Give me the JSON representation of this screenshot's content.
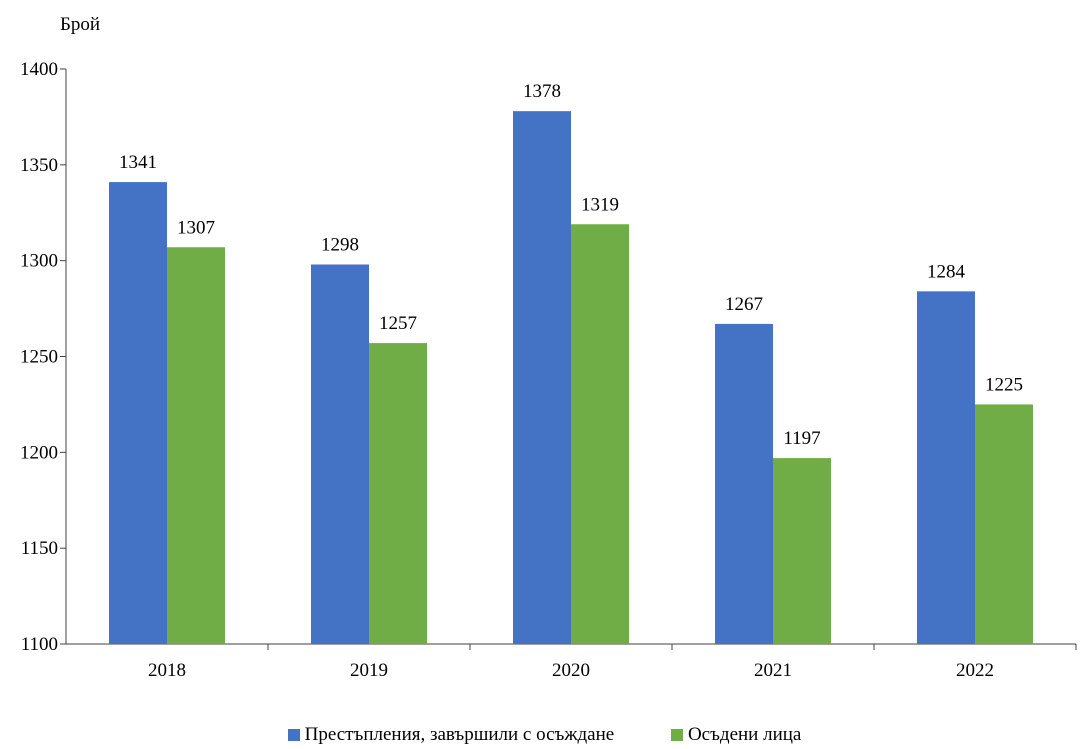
{
  "chart_data": {
    "type": "bar",
    "ylabel": "Брой",
    "ylim": [
      1100,
      1400
    ],
    "yticks": [
      1100,
      1150,
      1200,
      1250,
      1300,
      1350,
      1400
    ],
    "categories": [
      "2018",
      "2019",
      "2020",
      "2021",
      "2022"
    ],
    "grid": false,
    "legend_position": "bottom",
    "series": [
      {
        "name": "Престъпления, завършили с осъждане",
        "color": "#4472C4",
        "values": [
          1341,
          1298,
          1378,
          1267,
          1284
        ]
      },
      {
        "name": "Осъдени лица",
        "color": "#70AD47",
        "values": [
          1307,
          1257,
          1319,
          1197,
          1225
        ]
      }
    ]
  }
}
